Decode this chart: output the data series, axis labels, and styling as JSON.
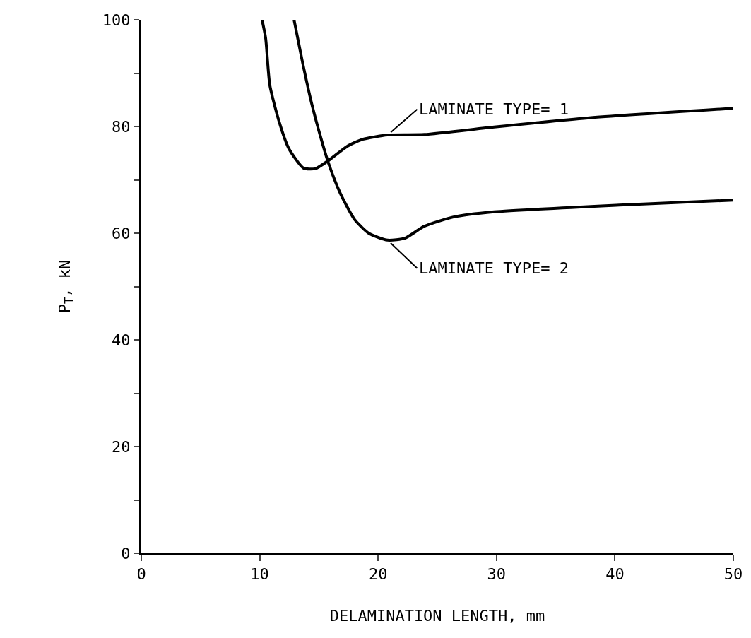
{
  "chart_data": {
    "type": "line",
    "xlabel": "DELAMINATION LENGTH, mm",
    "ylabel": "P$_{T}$, kN",
    "xlim": [
      0,
      50
    ],
    "xticks": [
      0,
      10,
      20,
      30,
      40,
      50
    ],
    "ylim": [
      0,
      100
    ],
    "yticks": [
      0,
      {
        "value": 10,
        "label": null
      },
      20,
      {
        "value": 30,
        "label": null
      },
      40,
      {
        "value": 50,
        "label": null
      },
      60,
      {
        "value": 70,
        "label": null
      },
      80,
      {
        "value": 90,
        "label": null
      },
      100
    ],
    "grid": false,
    "marker": "none",
    "line_style": "solid",
    "series": [
      {
        "color": "#000000",
        "x": [
          10.2,
          10.5,
          10.85,
          11.6,
          12.45,
          13.7,
          14.7,
          15.8,
          17.4,
          18.7,
          20.8,
          23.9,
          29.8,
          37.7,
          50
        ],
        "values": [
          100,
          96.6,
          87.8,
          81.2,
          75.9,
          72.2,
          72.1,
          73.6,
          76.3,
          77.6,
          78.4,
          78.5,
          79.9,
          81.6,
          83.4
        ]
      },
      {
        "color": "#000000",
        "x": [
          12.9,
          13.6,
          14.4,
          15.2,
          15.8,
          16.8,
          18,
          19.2,
          20.8,
          22.3,
          23.9,
          26.3,
          29.8,
          40.7,
          50
        ],
        "values": [
          100,
          92.2,
          84.2,
          77.6,
          73.2,
          67.5,
          62.6,
          60,
          58.7,
          59.1,
          61.3,
          63,
          64,
          65.3,
          66.2
        ]
      }
    ],
    "annotations": [
      {
        "text": "LAMINATE TYPE= 1",
        "x": 20.8,
        "y": 78.4
      },
      {
        "text": "LAMINATE TYPE= 2",
        "x": 20.8,
        "y": 58.7
      }
    ]
  }
}
